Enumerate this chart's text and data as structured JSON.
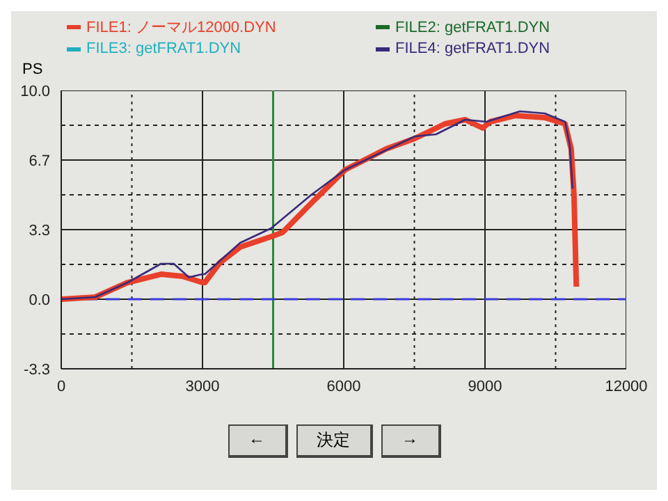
{
  "chart_data": {
    "type": "line",
    "ylabel": "PS",
    "legend": "top",
    "grid": true,
    "marker": "none",
    "line_style": "solid",
    "xlim": [
      0,
      12000
    ],
    "ylim": [
      -3.333,
      10
    ],
    "xticks": [
      0,
      {
        "value": 1500,
        "label": null
      },
      3000,
      {
        "value": 4500,
        "label": null
      },
      6000,
      {
        "value": 7500,
        "label": null
      },
      9000,
      {
        "value": 10500,
        "label": null
      },
      12000
    ],
    "yticks": [
      {
        "value": -3.333,
        "label": "-3.3"
      },
      {
        "value": -1.667,
        "label": null
      },
      {
        "value": 0,
        "label": "0.0"
      },
      {
        "value": 1.667,
        "label": null
      },
      {
        "value": 3.333,
        "label": "3.3"
      },
      {
        "value": 5,
        "label": null
      },
      {
        "value": 6.667,
        "label": "6.7"
      },
      {
        "value": 8.333,
        "label": null
      },
      {
        "value": 10,
        "label": "10.0"
      }
    ],
    "ref_lines": [
      {
        "axis": "x",
        "value": 4500,
        "label": null,
        "color": "#2a8a3a",
        "line_style": "solid"
      },
      {
        "axis": "y",
        "value": 0,
        "label": null,
        "color": "#3a3ae0",
        "line_style": "dashed"
      }
    ],
    "annotations": [
      "←",
      "決定",
      "→"
    ],
    "series": [
      {
        "name": "FILE1: ノーマル12000.DYN",
        "color": "#e8402a",
        "x": [
          0,
          720,
          1410,
          2120,
          2570,
          3000,
          3050,
          3370,
          3800,
          4460,
          4700,
          5310,
          6030,
          6900,
          7510,
          8150,
          8580,
          8950,
          9110,
          9640,
          10270,
          10700,
          10830,
          10890,
          10940
        ],
        "values": [
          0,
          0.1,
          0.8,
          1.2,
          1.1,
          0.8,
          0.8,
          1.75,
          2.5,
          3.0,
          3.2,
          4.6,
          6.2,
          7.2,
          7.7,
          8.4,
          8.6,
          8.2,
          8.5,
          8.8,
          8.7,
          8.4,
          7.2,
          5.0,
          0.6
        ]
      },
      {
        "name": "FILE2: getFRAT1.DYN",
        "color": "#1a6a2a"
      },
      {
        "name": "FILE3: getFRAT1.DYN",
        "color": "#20b0c0"
      },
      {
        "name": "FILE4: getFRAT1.DYN",
        "color": "#3a2a7a",
        "x": [
          0,
          720,
          1410,
          2120,
          2390,
          2710,
          3000,
          3050,
          3800,
          4460,
          5310,
          6030,
          7510,
          7960,
          8580,
          9030,
          9740,
          10270,
          10700,
          10800,
          10860
        ],
        "values": [
          0,
          0.1,
          0.8,
          1.7,
          1.7,
          1.05,
          1.2,
          1.2,
          2.7,
          3.4,
          5.0,
          6.2,
          7.8,
          7.9,
          8.6,
          8.5,
          9.0,
          8.9,
          8.5,
          7.4,
          5.3
        ]
      }
    ]
  }
}
